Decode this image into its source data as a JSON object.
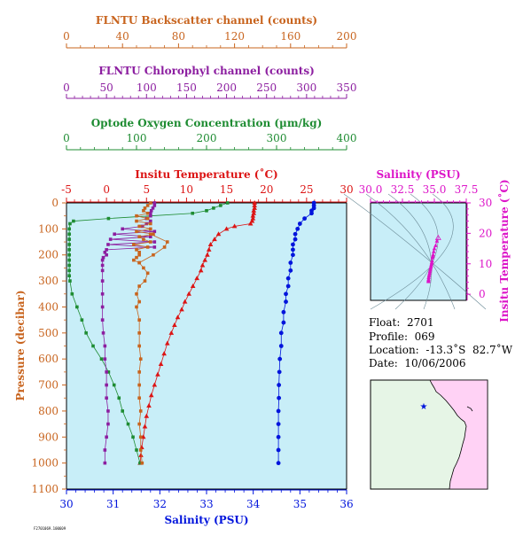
{
  "colors": {
    "backscatter": "#c8641e",
    "chlorophyll": "#8c1ea0",
    "oxygen": "#1e8c32",
    "temperature": "#dc1414",
    "salinity": "#0014dc",
    "ts_panel": "#dc14c8",
    "plot_bg": "#c8eef8",
    "map_land": "#e6f5e6",
    "map_land2": "#ffd2f5"
  },
  "icons": {
    "float_marker": "star-icon"
  },
  "info": {
    "float": "Float:  2701",
    "profile": "Profile:  069",
    "location": "Location:  -13.3˚S  82.7˚W",
    "date": "Date:  10/06/2006"
  },
  "chart_data": [
    {
      "type": "line",
      "title": "",
      "ylabel": "Pressure (decibar)",
      "ylim": [
        1100,
        0
      ],
      "yticks": [
        "0",
        "100",
        "200",
        "300",
        "400",
        "500",
        "600",
        "700",
        "800",
        "900",
        "1000",
        "1100"
      ],
      "axes": {
        "backscatter": {
          "label": "FLNTU Backscatter channel (counts)",
          "range": [
            0,
            200
          ],
          "ticks": [
            "0",
            "40",
            "80",
            "120",
            "160",
            "200"
          ]
        },
        "chlorophyll": {
          "label": "FLNTU Chlorophyl channel (counts)",
          "range": [
            0,
            350
          ],
          "ticks": [
            "0",
            "50",
            "100",
            "150",
            "200",
            "250",
            "300",
            "350"
          ]
        },
        "oxygen": {
          "label": "Optode Oxygen Concentration (µm/kg)",
          "range": [
            0,
            400
          ],
          "ticks": [
            "0",
            "100",
            "200",
            "300",
            "400"
          ]
        },
        "temperature": {
          "label": "Insitu Temperature (˚C)",
          "range": [
            -5,
            30
          ],
          "ticks": [
            "-5",
            "0",
            "5",
            "10",
            "15",
            "20",
            "25",
            "30"
          ]
        },
        "salinity": {
          "label": "Salinity (PSU)",
          "range": [
            30,
            36
          ],
          "ticks": [
            "30",
            "31",
            "32",
            "33",
            "34",
            "35",
            "36"
          ]
        }
      },
      "series": [
        {
          "axis": "temperature",
          "marker": "triangle",
          "points": [
            [
              18.5,
              0
            ],
            [
              18.5,
              10
            ],
            [
              18.5,
              20
            ],
            [
              18.4,
              30
            ],
            [
              18.4,
              40
            ],
            [
              18.3,
              50
            ],
            [
              18.3,
              60
            ],
            [
              18.2,
              70
            ],
            [
              18.0,
              80
            ],
            [
              16.0,
              90
            ],
            [
              15.0,
              100
            ],
            [
              14.0,
              120
            ],
            [
              13.5,
              140
            ],
            [
              13.0,
              160
            ],
            [
              12.8,
              180
            ],
            [
              12.6,
              200
            ],
            [
              12.3,
              220
            ],
            [
              12.0,
              240
            ],
            [
              11.8,
              260
            ],
            [
              11.3,
              290
            ],
            [
              10.8,
              320
            ],
            [
              10.3,
              350
            ],
            [
              9.8,
              380
            ],
            [
              9.4,
              410
            ],
            [
              8.9,
              440
            ],
            [
              8.5,
              470
            ],
            [
              8.1,
              500
            ],
            [
              7.6,
              540
            ],
            [
              7.2,
              580
            ],
            [
              6.8,
              620
            ],
            [
              6.4,
              660
            ],
            [
              6.0,
              700
            ],
            [
              5.6,
              740
            ],
            [
              5.3,
              780
            ],
            [
              5.0,
              820
            ],
            [
              4.8,
              860
            ],
            [
              4.6,
              900
            ],
            [
              4.4,
              940
            ],
            [
              4.3,
              970
            ],
            [
              4.2,
              1000
            ]
          ]
        },
        {
          "axis": "salinity",
          "marker": "dot",
          "points": [
            [
              35.3,
              0
            ],
            [
              35.3,
              10
            ],
            [
              35.3,
              20
            ],
            [
              35.25,
              30
            ],
            [
              35.25,
              40
            ],
            [
              35.1,
              60
            ],
            [
              35.0,
              80
            ],
            [
              34.95,
              100
            ],
            [
              34.9,
              120
            ],
            [
              34.9,
              140
            ],
            [
              34.85,
              160
            ],
            [
              34.85,
              180
            ],
            [
              34.85,
              200
            ],
            [
              34.8,
              230
            ],
            [
              34.8,
              260
            ],
            [
              34.75,
              290
            ],
            [
              34.75,
              320
            ],
            [
              34.7,
              350
            ],
            [
              34.7,
              380
            ],
            [
              34.65,
              420
            ],
            [
              34.65,
              460
            ],
            [
              34.6,
              500
            ],
            [
              34.6,
              550
            ],
            [
              34.57,
              600
            ],
            [
              34.56,
              650
            ],
            [
              34.55,
              700
            ],
            [
              34.55,
              750
            ],
            [
              34.54,
              800
            ],
            [
              34.54,
              850
            ],
            [
              34.54,
              900
            ],
            [
              34.54,
              950
            ],
            [
              34.54,
              1000
            ]
          ]
        },
        {
          "axis": "oxygen",
          "marker": "square",
          "points": [
            [
              230,
              0
            ],
            [
              220,
              10
            ],
            [
              210,
              20
            ],
            [
              200,
              30
            ],
            [
              180,
              40
            ],
            [
              120,
              50
            ],
            [
              60,
              60
            ],
            [
              10,
              70
            ],
            [
              5,
              80
            ],
            [
              4,
              100
            ],
            [
              4,
              120
            ],
            [
              4,
              140
            ],
            [
              4,
              160
            ],
            [
              4,
              180
            ],
            [
              4,
              200
            ],
            [
              4,
              220
            ],
            [
              4,
              240
            ],
            [
              4,
              260
            ],
            [
              4,
              280
            ],
            [
              5,
              300
            ],
            [
              8,
              350
            ],
            [
              15,
              400
            ],
            [
              22,
              450
            ],
            [
              28,
              500
            ],
            [
              38,
              550
            ],
            [
              50,
              600
            ],
            [
              60,
              650
            ],
            [
              68,
              700
            ],
            [
              75,
              750
            ],
            [
              80,
              800
            ],
            [
              88,
              850
            ],
            [
              95,
              900
            ],
            [
              100,
              950
            ],
            [
              105,
              1000
            ]
          ]
        },
        {
          "axis": "chlorophyll",
          "marker": "square",
          "points": [
            [
              110,
              0
            ],
            [
              110,
              10
            ],
            [
              108,
              20
            ],
            [
              106,
              30
            ],
            [
              105,
              40
            ],
            [
              105,
              50
            ],
            [
              100,
              60
            ],
            [
              105,
              70
            ],
            [
              100,
              80
            ],
            [
              95,
              90
            ],
            [
              70,
              100
            ],
            [
              110,
              110
            ],
            [
              60,
              120
            ],
            [
              105,
              130
            ],
            [
              55,
              140
            ],
            [
              110,
              150
            ],
            [
              52,
              160
            ],
            [
              110,
              170
            ],
            [
              50,
              180
            ],
            [
              48,
              190
            ],
            [
              50,
              200
            ],
            [
              46,
              210
            ],
            [
              45,
              220
            ],
            [
              45,
              240
            ],
            [
              45,
              260
            ],
            [
              45,
              300
            ],
            [
              45,
              350
            ],
            [
              45,
              400
            ],
            [
              45,
              450
            ],
            [
              46,
              500
            ],
            [
              48,
              550
            ],
            [
              48,
              600
            ],
            [
              50,
              650
            ],
            [
              50,
              700
            ],
            [
              50,
              750
            ],
            [
              52,
              800
            ],
            [
              52,
              850
            ],
            [
              50,
              900
            ],
            [
              48,
              950
            ],
            [
              48,
              1000
            ]
          ]
        },
        {
          "axis": "backscatter",
          "marker": "square",
          "points": [
            [
              60,
              0
            ],
            [
              58,
              10
            ],
            [
              56,
              20
            ],
            [
              55,
              30
            ],
            [
              58,
              40
            ],
            [
              50,
              50
            ],
            [
              58,
              60
            ],
            [
              50,
              70
            ],
            [
              60,
              80
            ],
            [
              52,
              90
            ],
            [
              60,
              100
            ],
            [
              50,
              110
            ],
            [
              62,
              120
            ],
            [
              52,
              130
            ],
            [
              55,
              140
            ],
            [
              60,
              150
            ],
            [
              48,
              160
            ],
            [
              58,
              170
            ],
            [
              50,
              180
            ],
            [
              52,
              190
            ],
            [
              52,
              200
            ],
            [
              50,
              210
            ],
            [
              48,
              220
            ],
            [
              52,
              230
            ],
            [
              55,
              250
            ],
            [
              58,
              270
            ],
            [
              56,
              300
            ],
            [
              52,
              320
            ],
            [
              50,
              350
            ],
            [
              52,
              380
            ],
            [
              50,
              400
            ],
            [
              52,
              450
            ],
            [
              52,
              500
            ],
            [
              52,
              550
            ],
            [
              53,
              600
            ],
            [
              52,
              650
            ],
            [
              52,
              700
            ],
            [
              52,
              750
            ],
            [
              53,
              800
            ],
            [
              52,
              850
            ],
            [
              53,
              900
            ],
            [
              53,
              950
            ],
            [
              54,
              1000
            ]
          ]
        }
      ],
      "extra_series": {
        "axis": "backscatter",
        "points": [
          [
            60,
            120
          ],
          [
            72,
            150
          ],
          [
            70,
            170
          ],
          [
            62,
            200
          ],
          [
            52,
            230
          ]
        ]
      },
      "xlabel": "Salinity (PSU)"
    },
    {
      "type": "scatter",
      "title": "",
      "xlabel": "Salinity (PSU)",
      "ylabel": "Insitu Temperature (˚C)",
      "xlim": [
        30,
        37.5
      ],
      "ylim": [
        -2,
        30
      ],
      "xticks": [
        "30.0",
        "32.5",
        "35.0",
        "37.5"
      ],
      "yticks": [
        "0",
        "10",
        "20",
        "30"
      ],
      "points": [
        [
          35.3,
          18.5
        ],
        [
          35.2,
          17.5
        ],
        [
          35.1,
          16.0
        ],
        [
          35.0,
          15.0
        ],
        [
          34.95,
          14.0
        ],
        [
          34.9,
          13.0
        ],
        [
          34.88,
          12.5
        ],
        [
          34.85,
          12.0
        ],
        [
          34.82,
          11.0
        ],
        [
          34.8,
          10.5
        ],
        [
          34.78,
          10.0
        ],
        [
          34.75,
          9.5
        ],
        [
          34.73,
          9.0
        ],
        [
          34.7,
          8.5
        ],
        [
          34.68,
          8.0
        ],
        [
          34.65,
          7.5
        ],
        [
          34.63,
          7.0
        ],
        [
          34.6,
          6.5
        ],
        [
          34.58,
          6.0
        ],
        [
          34.56,
          5.5
        ],
        [
          34.55,
          5.0
        ],
        [
          34.54,
          4.6
        ],
        [
          34.54,
          4.4
        ],
        [
          34.54,
          4.2
        ]
      ]
    }
  ],
  "footer_code": "F2701069.100609"
}
